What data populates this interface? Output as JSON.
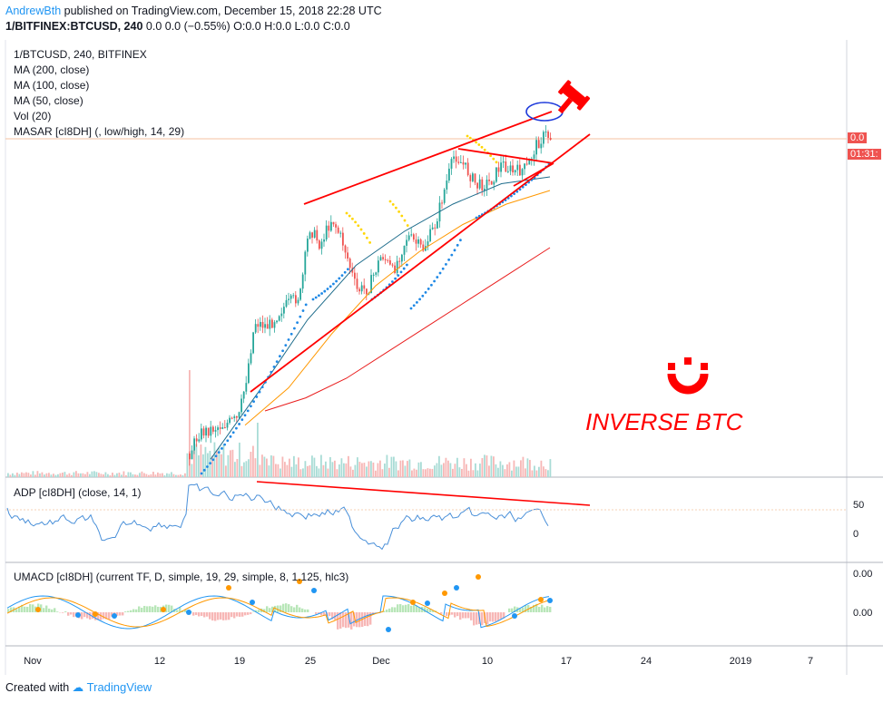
{
  "header": {
    "author": "AndrewBth",
    "published_text": "published on TradingView.com, December 15, 2018 22:28 UTC",
    "symbol": "1/BITFINEX:BTCUSD, 240",
    "ohlc": "0.0 0.0 (−0.55%) O:0.0 H:0.0 L:0.0 C:0.0"
  },
  "legend": {
    "title": "1/BTCUSD, 240, BITFINEX",
    "ma200": "MA (200, close)",
    "ma100": "MA (100, close)",
    "ma50": "MA (50, close)",
    "vol": "Vol (20)",
    "masar": "MASAR [cI8DH] (, low/high, 14, 29)"
  },
  "indicators": {
    "adp_label": "ADP [cI8DH] (close, 14, 1)",
    "umacd_label": "UMACD [cI8DH] (current TF, D, simple, 19, 29, simple, 8, 1.125, hlc3)",
    "adp_ticks": [
      "50",
      "0"
    ],
    "umacd_ticks": [
      "0.00",
      "0.00"
    ]
  },
  "price_tags": {
    "last": "0.0",
    "countdown": "01:31:"
  },
  "annotation": {
    "text": "INVERSE BTC",
    "color": "#ff0000"
  },
  "x_axis": {
    "labels": [
      "Nov",
      "12",
      "19",
      "25",
      "Dec",
      "10",
      "17",
      "24",
      "2019",
      "7"
    ]
  },
  "footer": {
    "created_with": "Created with",
    "brand": "TradingView"
  },
  "colors": {
    "up": "#26a69a",
    "down": "#ef5350",
    "ma200": "#e91e1e",
    "ma100": "#ff9800",
    "ma50": "#1f6d8c",
    "masar": "#1e88e5",
    "trendline": "#ff0000",
    "accent": "#2196f3"
  },
  "chart_data": {
    "type": "line",
    "title": "1/BTCUSD, 240, BITFINEX",
    "x_ticks": [
      "Nov",
      "12",
      "19",
      "25",
      "Dec",
      "10",
      "17",
      "24",
      "2019",
      "7"
    ],
    "series": [
      {
        "name": "MA (200, close)",
        "values": [
          0.2,
          0.24,
          0.3,
          0.38,
          0.46,
          0.54,
          0.62,
          0.7
        ]
      },
      {
        "name": "MA (100, close)",
        "values": [
          0.15,
          0.26,
          0.42,
          0.56,
          0.66,
          0.74,
          0.8,
          0.84
        ]
      },
      {
        "name": "MA (50, close)",
        "values": [
          0.05,
          0.25,
          0.46,
          0.62,
          0.72,
          0.8,
          0.86,
          0.88
        ]
      }
    ],
    "ylim": [
      0,
      1
    ],
    "grid": true,
    "legend": "top-left"
  }
}
